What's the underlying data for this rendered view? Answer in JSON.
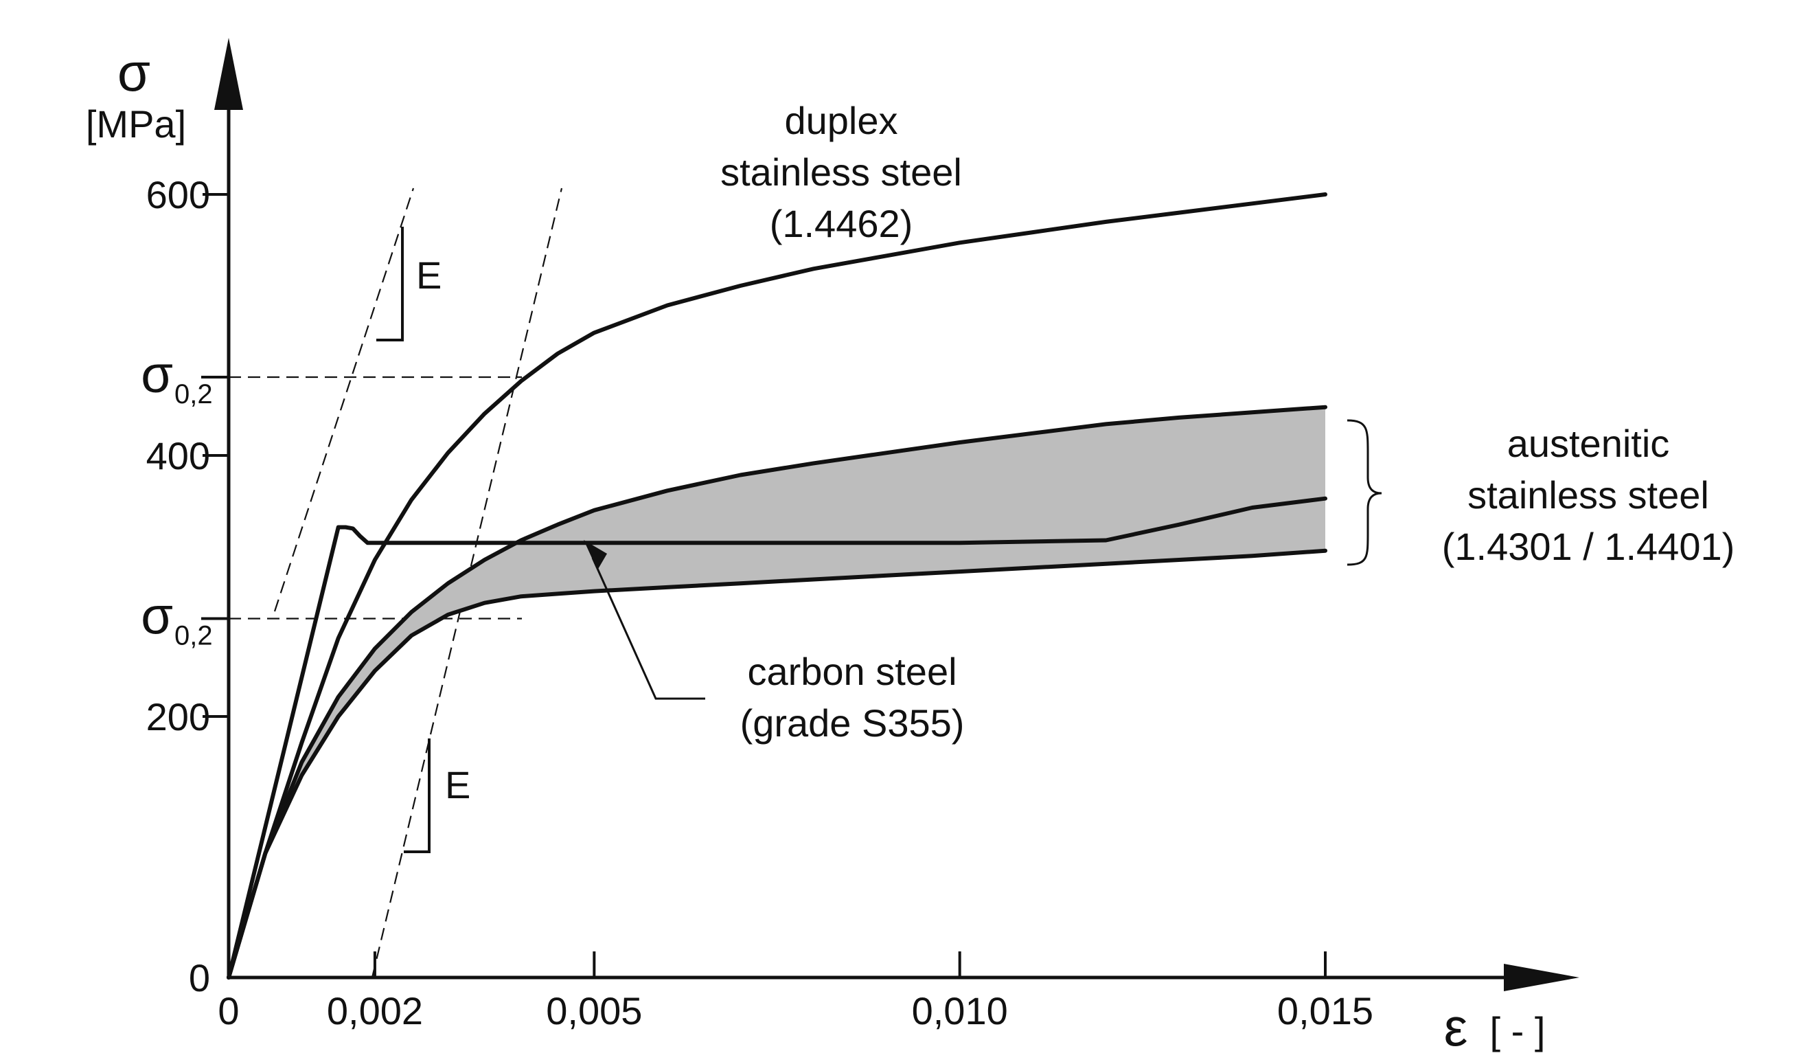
{
  "chart_data": {
    "type": "line",
    "xlabel": "ε",
    "xunit": "[ - ]",
    "ylabel": "σ",
    "yunit": "[MPa]",
    "xlim": [
      0,
      0.018
    ],
    "ylim": [
      0,
      700
    ],
    "x_ticks": [
      {
        "value": 0,
        "label": "0"
      },
      {
        "value": 0.002,
        "label": "0,002"
      },
      {
        "value": 0.005,
        "label": "0,005"
      },
      {
        "value": 0.01,
        "label": "0,010"
      },
      {
        "value": 0.015,
        "label": "0,015"
      }
    ],
    "y_ticks": [
      {
        "value": 0,
        "label": "0"
      },
      {
        "value": 200,
        "label": "200"
      },
      {
        "value": 400,
        "label": "400"
      },
      {
        "value": 600,
        "label": "600"
      }
    ],
    "proof_stress_labels": [
      {
        "value": 460,
        "main": "σ",
        "sub": "0,2"
      },
      {
        "value": 275,
        "main": "σ",
        "sub": "0,2"
      }
    ],
    "series": [
      {
        "id": "duplex",
        "label_lines": [
          "duplex",
          "stainless steel",
          "(1.4462)"
        ],
        "x": [
          0,
          0.0005,
          0.001,
          0.0015,
          0.002,
          0.0025,
          0.003,
          0.0035,
          0.004,
          0.0045,
          0.005,
          0.006,
          0.007,
          0.008,
          0.009,
          0.01,
          0.011,
          0.012,
          0.013,
          0.014,
          0.015
        ],
        "y": [
          0,
          95,
          180,
          260,
          320,
          366,
          402,
          432,
          457,
          478,
          494,
          515,
          530,
          543,
          553,
          563,
          571,
          579,
          586,
          593,
          600
        ]
      },
      {
        "id": "austenitic-upper",
        "label_lines": [
          "austenitic",
          "stainless steel",
          "(1.4301 / 1.4401)"
        ],
        "x": [
          0,
          0.0005,
          0.001,
          0.0015,
          0.002,
          0.0025,
          0.003,
          0.0035,
          0.004,
          0.0045,
          0.005,
          0.006,
          0.007,
          0.008,
          0.009,
          0.01,
          0.011,
          0.012,
          0.013,
          0.014,
          0.015
        ],
        "y": [
          0,
          95,
          165,
          215,
          252,
          280,
          302,
          320,
          335,
          347,
          358,
          373,
          385,
          394,
          402,
          410,
          417,
          424,
          429,
          433,
          437
        ]
      },
      {
        "id": "austenitic-lower",
        "x": [
          0,
          0.0005,
          0.001,
          0.0015,
          0.002,
          0.0025,
          0.003,
          0.0035,
          0.004,
          0.0045,
          0.005,
          0.006,
          0.007,
          0.008,
          0.009,
          0.01,
          0.011,
          0.012,
          0.013,
          0.014,
          0.015
        ],
        "y": [
          0,
          95,
          155,
          200,
          235,
          262,
          278,
          287,
          292,
          294,
          296,
          299,
          302,
          305,
          308,
          311,
          314,
          317,
          320,
          323,
          327
        ]
      },
      {
        "id": "carbon-steel",
        "label_lines": [
          "carbon steel",
          "(grade S355)"
        ],
        "x": [
          0,
          0.0015,
          0.0016,
          0.0017,
          0.0018,
          0.0019,
          0.002,
          0.004,
          0.006,
          0.008,
          0.01,
          0.012,
          0.013,
          0.014,
          0.015
        ],
        "y": [
          0,
          345,
          345,
          344,
          338,
          333,
          333,
          333,
          333,
          333,
          333,
          335,
          347,
          360,
          367
        ]
      }
    ],
    "modulus_label": "E",
    "annotations": [
      "E",
      "E"
    ]
  }
}
